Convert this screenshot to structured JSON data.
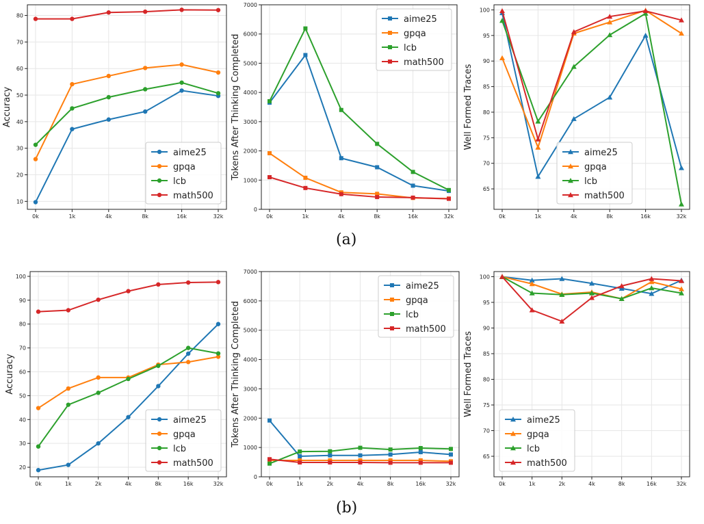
{
  "captions": {
    "a": "(a)",
    "b": "(b)"
  },
  "colors": {
    "aime25": "#1f77b4",
    "gpqa": "#ff7f0e",
    "lcb": "#2ca02c",
    "math500": "#d62728"
  },
  "chart_data": [
    {
      "type": "line",
      "panel": "a-accuracy",
      "title": "",
      "xlabel": "",
      "ylabel": "Accuracy",
      "categories": [
        "0k",
        "1k",
        "4k",
        "8k",
        "16k",
        "32k"
      ],
      "ylim": [
        7,
        84
      ],
      "yticks": [
        10,
        20,
        30,
        40,
        50,
        60,
        70,
        80
      ],
      "marker": "circle",
      "legend_loc": "lower-right",
      "series": [
        {
          "name": "aime25",
          "values": [
            9.7,
            37.2,
            40.8,
            43.8,
            51.7,
            49.7
          ]
        },
        {
          "name": "gpqa",
          "values": [
            25.9,
            54.1,
            57.2,
            60.2,
            61.5,
            58.5
          ]
        },
        {
          "name": "lcb",
          "values": [
            31.3,
            45.0,
            49.2,
            52.2,
            54.7,
            50.7
          ]
        },
        {
          "name": "math500",
          "values": [
            78.7,
            78.7,
            81.1,
            81.4,
            82.1,
            82.0
          ]
        }
      ]
    },
    {
      "type": "line",
      "panel": "a-tokens",
      "title": "",
      "xlabel": "",
      "ylabel": "Tokens After Thinking Completed",
      "categories": [
        "0k",
        "1k",
        "4k",
        "8k",
        "16k",
        "32k"
      ],
      "ylim": [
        0,
        7000
      ],
      "yticks": [
        0,
        1000,
        2000,
        3000,
        4000,
        5000,
        6000,
        7000
      ],
      "marker": "square",
      "legend_loc": "upper-right",
      "series": [
        {
          "name": "aime25",
          "values": [
            3650,
            5280,
            1750,
            1440,
            810,
            630
          ]
        },
        {
          "name": "gpqa",
          "values": [
            1920,
            1080,
            580,
            530,
            390,
            370
          ]
        },
        {
          "name": "lcb",
          "values": [
            3700,
            6190,
            3400,
            2240,
            1280,
            660
          ]
        },
        {
          "name": "math500",
          "values": [
            1100,
            730,
            520,
            420,
            400,
            360
          ]
        }
      ]
    },
    {
      "type": "line",
      "panel": "a-wellformed",
      "title": "",
      "xlabel": "",
      "ylabel": "Well Formed Traces",
      "categories": [
        "0k",
        "1k",
        "4k",
        "8k",
        "16k",
        "32k"
      ],
      "ylim": [
        61,
        101
      ],
      "yticks": [
        65,
        70,
        75,
        80,
        85,
        90,
        95,
        100
      ],
      "marker": "triangle",
      "legend_loc": "lower-center",
      "series": [
        {
          "name": "aime25",
          "values": [
            99.4,
            67.4,
            78.7,
            82.9,
            95.0,
            69.1
          ]
        },
        {
          "name": "gpqa",
          "values": [
            90.6,
            73.1,
            95.4,
            97.6,
            99.9,
            95.4
          ]
        },
        {
          "name": "lcb",
          "values": [
            97.9,
            78.2,
            88.9,
            95.1,
            99.3,
            62.0
          ]
        },
        {
          "name": "math500",
          "values": [
            99.8,
            74.7,
            95.7,
            98.7,
            99.8,
            98.0
          ]
        }
      ]
    },
    {
      "type": "line",
      "panel": "b-accuracy",
      "title": "",
      "xlabel": "",
      "ylabel": "Accuracy",
      "categories": [
        "0k",
        "1k",
        "2k",
        "4k",
        "8k",
        "16k",
        "32k"
      ],
      "ylim": [
        16,
        102
      ],
      "yticks": [
        20,
        30,
        40,
        50,
        60,
        70,
        80,
        90,
        100
      ],
      "marker": "circle",
      "legend_loc": "lower-right",
      "series": [
        {
          "name": "aime25",
          "values": [
            18.8,
            21.0,
            30.0,
            41.0,
            54.0,
            67.6,
            80.0
          ]
        },
        {
          "name": "gpqa",
          "values": [
            44.8,
            53.0,
            57.6,
            57.6,
            63.0,
            64.1,
            66.3
          ]
        },
        {
          "name": "lcb",
          "values": [
            28.7,
            46.2,
            51.2,
            57.0,
            62.5,
            70.0,
            67.7
          ]
        },
        {
          "name": "math500",
          "values": [
            85.2,
            85.8,
            90.2,
            93.8,
            96.6,
            97.4,
            97.6
          ]
        }
      ]
    },
    {
      "type": "line",
      "panel": "b-tokens",
      "title": "",
      "xlabel": "",
      "ylabel": "Tokens After Thinking Completed",
      "categories": [
        "0k",
        "1k",
        "2k",
        "4k",
        "8k",
        "16k",
        "32k"
      ],
      "ylim": [
        0,
        7000
      ],
      "yticks": [
        0,
        1000,
        2000,
        3000,
        4000,
        5000,
        6000,
        7000
      ],
      "marker": "square",
      "legend_loc": "upper-right",
      "series": [
        {
          "name": "aime25",
          "values": [
            1920,
            700,
            730,
            730,
            760,
            840,
            760
          ]
        },
        {
          "name": "gpqa",
          "values": [
            560,
            560,
            560,
            560,
            560,
            560,
            530
          ]
        },
        {
          "name": "lcb",
          "values": [
            450,
            860,
            870,
            990,
            930,
            980,
            950
          ]
        },
        {
          "name": "math500",
          "values": [
            600,
            490,
            490,
            490,
            480,
            480,
            480
          ]
        }
      ]
    },
    {
      "type": "line",
      "panel": "b-wellformed",
      "title": "",
      "xlabel": "",
      "ylabel": "Well Formed Traces",
      "categories": [
        "0k",
        "1k",
        "2k",
        "4k",
        "8k",
        "16k",
        "32k"
      ],
      "ylim": [
        61,
        101
      ],
      "yticks": [
        65,
        70,
        75,
        80,
        85,
        90,
        95,
        100
      ],
      "marker": "triangle",
      "legend_loc": "lower-left",
      "series": [
        {
          "name": "aime25",
          "values": [
            100.0,
            99.3,
            99.6,
            98.7,
            97.7,
            96.7,
            99.3
          ]
        },
        {
          "name": "gpqa",
          "values": [
            100.0,
            98.6,
            96.6,
            97.0,
            95.7,
            99.0,
            97.6
          ]
        },
        {
          "name": "lcb",
          "values": [
            100.0,
            96.8,
            96.5,
            96.8,
            95.7,
            97.8,
            96.8
          ]
        },
        {
          "name": "math500",
          "values": [
            100.0,
            93.5,
            91.3,
            95.9,
            98.2,
            99.6,
            99.2
          ]
        }
      ]
    }
  ]
}
